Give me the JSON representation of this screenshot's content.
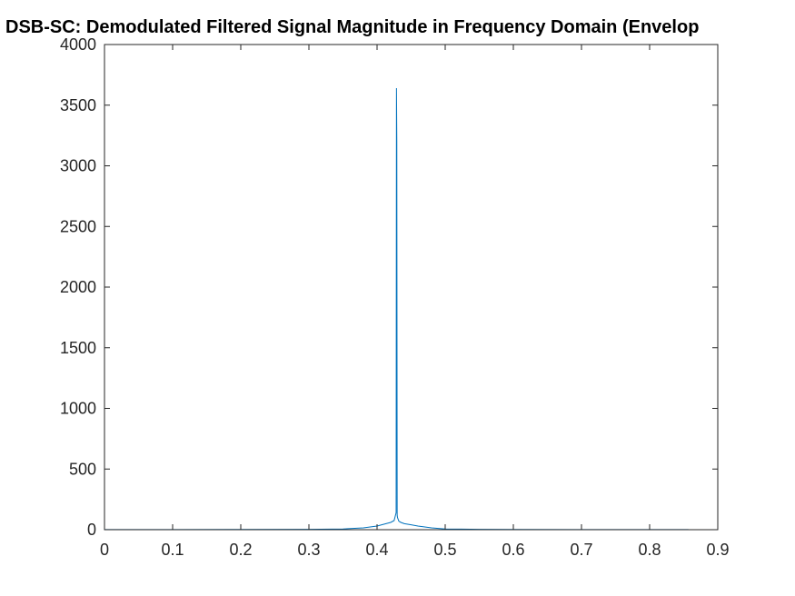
{
  "chart_data": {
    "type": "line",
    "title": "DSB-SC: Demodulated Filtered Signal Magnitude in Frequency Domain (Envelop",
    "xlabel": "",
    "ylabel": "",
    "xlim": [
      0,
      0.9
    ],
    "ylim": [
      0,
      4000
    ],
    "xticks": [
      "0",
      "0.1",
      "0.2",
      "0.3",
      "0.4",
      "0.5",
      "0.6",
      "0.7",
      "0.8",
      "0.9"
    ],
    "yticks": [
      "0",
      "500",
      "1000",
      "1500",
      "2000",
      "2500",
      "3000",
      "3500",
      "4000"
    ],
    "grid": false,
    "line_color": "#0072BD",
    "series": [
      {
        "x": [
          0,
          0.1,
          0.2,
          0.3,
          0.35,
          0.38,
          0.4,
          0.41,
          0.42,
          0.425,
          0.428,
          0.4285,
          0.429,
          0.4295,
          0.43,
          0.432,
          0.435,
          0.44,
          0.45,
          0.46,
          0.48,
          0.5,
          0.55,
          0.6,
          0.7,
          0.8,
          0.857
        ],
        "y": [
          1,
          1,
          2,
          3,
          6,
          15,
          30,
          45,
          60,
          75,
          140,
          3640,
          3200,
          120,
          100,
          70,
          60,
          50,
          40,
          30,
          15,
          6,
          3,
          2,
          1,
          1,
          1
        ]
      }
    ]
  }
}
